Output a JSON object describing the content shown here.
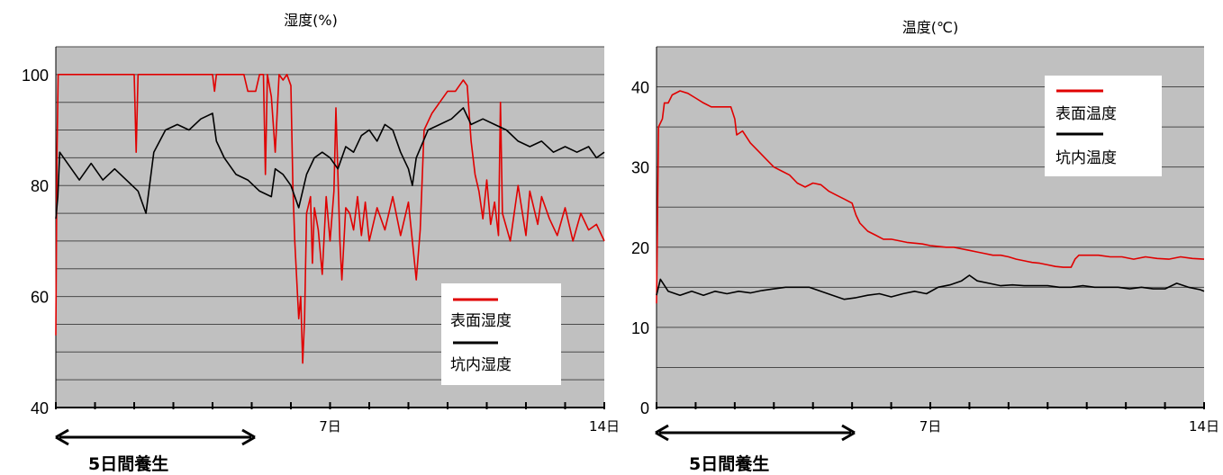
{
  "chart_data": [
    {
      "type": "line",
      "title": "湿度(%)",
      "xlabel": "",
      "ylabel": "",
      "ylim": [
        40,
        105
      ],
      "xlim": [
        0,
        14
      ],
      "yticks": [
        40,
        60,
        80,
        100
      ],
      "xtick_labels": [
        {
          "x": 7,
          "label": "7日"
        },
        {
          "x": 14,
          "label": "14日"
        }
      ],
      "grid": true,
      "legend": "bottom-right",
      "annotation": "5日間養生",
      "annotation_range": [
        0,
        5
      ],
      "series": [
        {
          "name": "表面湿度",
          "color": "#e00000",
          "points": [
            [
              0,
              53
            ],
            [
              0.03,
              86
            ],
            [
              0.06,
              100
            ],
            [
              2.0,
              100
            ],
            [
              2.05,
              86
            ],
            [
              2.1,
              100
            ],
            [
              4.0,
              100
            ],
            [
              4.05,
              97
            ],
            [
              4.1,
              100
            ],
            [
              4.8,
              100
            ],
            [
              4.9,
              97
            ],
            [
              5.1,
              97
            ],
            [
              5.2,
              100
            ],
            [
              5.3,
              100
            ],
            [
              5.35,
              82
            ],
            [
              5.4,
              100
            ],
            [
              5.5,
              96
            ],
            [
              5.6,
              86
            ],
            [
              5.7,
              100
            ],
            [
              5.8,
              99
            ],
            [
              5.9,
              100
            ],
            [
              6.0,
              98
            ],
            [
              6.05,
              80
            ],
            [
              6.1,
              70
            ],
            [
              6.2,
              56
            ],
            [
              6.25,
              60
            ],
            [
              6.3,
              48
            ],
            [
              6.35,
              56
            ],
            [
              6.4,
              75
            ],
            [
              6.5,
              78
            ],
            [
              6.55,
              66
            ],
            [
              6.6,
              76
            ],
            [
              6.7,
              72
            ],
            [
              6.8,
              64
            ],
            [
              6.9,
              78
            ],
            [
              7.0,
              70
            ],
            [
              7.1,
              79
            ],
            [
              7.15,
              94
            ],
            [
              7.25,
              70
            ],
            [
              7.3,
              63
            ],
            [
              7.4,
              76
            ],
            [
              7.5,
              75
            ],
            [
              7.6,
              72
            ],
            [
              7.7,
              78
            ],
            [
              7.8,
              71
            ],
            [
              7.9,
              77
            ],
            [
              8.0,
              70
            ],
            [
              8.2,
              76
            ],
            [
              8.4,
              72
            ],
            [
              8.6,
              78
            ],
            [
              8.8,
              71
            ],
            [
              9.0,
              77
            ],
            [
              9.1,
              70
            ],
            [
              9.2,
              63
            ],
            [
              9.3,
              72
            ],
            [
              9.4,
              90
            ],
            [
              9.6,
              93
            ],
            [
              9.8,
              95
            ],
            [
              10.0,
              97
            ],
            [
              10.2,
              97
            ],
            [
              10.4,
              99
            ],
            [
              10.5,
              98
            ],
            [
              10.6,
              88
            ],
            [
              10.7,
              82
            ],
            [
              10.8,
              79
            ],
            [
              10.9,
              74
            ],
            [
              11.0,
              81
            ],
            [
              11.1,
              73
            ],
            [
              11.2,
              77
            ],
            [
              11.3,
              71
            ],
            [
              11.35,
              95
            ],
            [
              11.4,
              75
            ],
            [
              11.6,
              70
            ],
            [
              11.8,
              80
            ],
            [
              12.0,
              71
            ],
            [
              12.1,
              79
            ],
            [
              12.3,
              73
            ],
            [
              12.4,
              78
            ],
            [
              12.6,
              74
            ],
            [
              12.8,
              71
            ],
            [
              13.0,
              76
            ],
            [
              13.2,
              70
            ],
            [
              13.4,
              75
            ],
            [
              13.6,
              72
            ],
            [
              13.8,
              73
            ],
            [
              14.0,
              70
            ]
          ]
        },
        {
          "name": "坑内湿度",
          "color": "#000000",
          "points": [
            [
              0,
              74
            ],
            [
              0.05,
              78
            ],
            [
              0.1,
              86
            ],
            [
              0.3,
              84
            ],
            [
              0.6,
              81
            ],
            [
              0.9,
              84
            ],
            [
              1.2,
              81
            ],
            [
              1.5,
              83
            ],
            [
              1.8,
              81
            ],
            [
              2.1,
              79
            ],
            [
              2.3,
              75
            ],
            [
              2.5,
              86
            ],
            [
              2.8,
              90
            ],
            [
              3.1,
              91
            ],
            [
              3.4,
              90
            ],
            [
              3.7,
              92
            ],
            [
              4.0,
              93
            ],
            [
              4.1,
              88
            ],
            [
              4.3,
              85
            ],
            [
              4.6,
              82
            ],
            [
              4.9,
              81
            ],
            [
              5.2,
              79
            ],
            [
              5.5,
              78
            ],
            [
              5.6,
              83
            ],
            [
              5.8,
              82
            ],
            [
              6.0,
              80
            ],
            [
              6.2,
              76
            ],
            [
              6.4,
              82
            ],
            [
              6.6,
              85
            ],
            [
              6.8,
              86
            ],
            [
              7.0,
              85
            ],
            [
              7.2,
              83
            ],
            [
              7.4,
              87
            ],
            [
              7.6,
              86
            ],
            [
              7.8,
              89
            ],
            [
              8.0,
              90
            ],
            [
              8.2,
              88
            ],
            [
              8.4,
              91
            ],
            [
              8.6,
              90
            ],
            [
              8.8,
              86
            ],
            [
              9.0,
              83
            ],
            [
              9.1,
              80
            ],
            [
              9.2,
              85
            ],
            [
              9.5,
              90
            ],
            [
              9.8,
              91
            ],
            [
              10.1,
              92
            ],
            [
              10.4,
              94
            ],
            [
              10.6,
              91
            ],
            [
              10.9,
              92
            ],
            [
              11.2,
              91
            ],
            [
              11.5,
              90
            ],
            [
              11.8,
              88
            ],
            [
              12.1,
              87
            ],
            [
              12.4,
              88
            ],
            [
              12.7,
              86
            ],
            [
              13.0,
              87
            ],
            [
              13.3,
              86
            ],
            [
              13.6,
              87
            ],
            [
              13.8,
              85
            ],
            [
              14.0,
              86
            ]
          ]
        }
      ]
    },
    {
      "type": "line",
      "title": "温度(℃)",
      "xlabel": "",
      "ylabel": "",
      "ylim": [
        0,
        45
      ],
      "xlim": [
        0,
        14
      ],
      "yticks": [
        0,
        10,
        20,
        30,
        40
      ],
      "xtick_labels": [
        {
          "x": 7,
          "label": "7日"
        },
        {
          "x": 14,
          "label": "14日"
        }
      ],
      "grid": true,
      "legend": "top-right",
      "annotation": "5日間養生",
      "annotation_range": [
        0,
        5
      ],
      "series": [
        {
          "name": "表面温度",
          "color": "#e00000",
          "points": [
            [
              0,
              13
            ],
            [
              0.05,
              35
            ],
            [
              0.15,
              36
            ],
            [
              0.2,
              38
            ],
            [
              0.3,
              38
            ],
            [
              0.4,
              39
            ],
            [
              0.6,
              39.5
            ],
            [
              0.8,
              39.2
            ],
            [
              1.0,
              38.6
            ],
            [
              1.2,
              38
            ],
            [
              1.4,
              37.5
            ],
            [
              1.7,
              37.5
            ],
            [
              1.9,
              37.5
            ],
            [
              2.0,
              36
            ],
            [
              2.05,
              34
            ],
            [
              2.2,
              34.5
            ],
            [
              2.4,
              33
            ],
            [
              2.6,
              32
            ],
            [
              2.8,
              31
            ],
            [
              3.0,
              30
            ],
            [
              3.2,
              29.5
            ],
            [
              3.4,
              29
            ],
            [
              3.6,
              28
            ],
            [
              3.8,
              27.5
            ],
            [
              4.0,
              28
            ],
            [
              4.2,
              27.8
            ],
            [
              4.4,
              27
            ],
            [
              4.6,
              26.5
            ],
            [
              4.8,
              26
            ],
            [
              5.0,
              25.5
            ],
            [
              5.1,
              24
            ],
            [
              5.2,
              23
            ],
            [
              5.4,
              22
            ],
            [
              5.6,
              21.5
            ],
            [
              5.8,
              21
            ],
            [
              6.0,
              21
            ],
            [
              6.2,
              20.8
            ],
            [
              6.4,
              20.6
            ],
            [
              6.6,
              20.5
            ],
            [
              6.8,
              20.4
            ],
            [
              7.0,
              20.2
            ],
            [
              7.2,
              20.1
            ],
            [
              7.4,
              20
            ],
            [
              7.6,
              20
            ],
            [
              7.8,
              19.8
            ],
            [
              8.0,
              19.6
            ],
            [
              8.2,
              19.4
            ],
            [
              8.4,
              19.2
            ],
            [
              8.6,
              19
            ],
            [
              8.8,
              19
            ],
            [
              9.0,
              18.8
            ],
            [
              9.2,
              18.5
            ],
            [
              9.4,
              18.3
            ],
            [
              9.6,
              18.1
            ],
            [
              9.8,
              18
            ],
            [
              10.0,
              17.8
            ],
            [
              10.2,
              17.6
            ],
            [
              10.4,
              17.5
            ],
            [
              10.6,
              17.5
            ],
            [
              10.7,
              18.5
            ],
            [
              10.8,
              19
            ],
            [
              11.0,
              19
            ],
            [
              11.3,
              19
            ],
            [
              11.6,
              18.8
            ],
            [
              11.9,
              18.8
            ],
            [
              12.2,
              18.5
            ],
            [
              12.5,
              18.8
            ],
            [
              12.8,
              18.6
            ],
            [
              13.1,
              18.5
            ],
            [
              13.4,
              18.8
            ],
            [
              13.7,
              18.6
            ],
            [
              14.0,
              18.5
            ]
          ]
        },
        {
          "name": "坑内温度",
          "color": "#000000",
          "points": [
            [
              0,
              14
            ],
            [
              0.1,
              16
            ],
            [
              0.3,
              14.5
            ],
            [
              0.6,
              14
            ],
            [
              0.9,
              14.5
            ],
            [
              1.2,
              14
            ],
            [
              1.5,
              14.5
            ],
            [
              1.8,
              14.2
            ],
            [
              2.1,
              14.5
            ],
            [
              2.4,
              14.3
            ],
            [
              2.7,
              14.6
            ],
            [
              3.0,
              14.8
            ],
            [
              3.3,
              15
            ],
            [
              3.6,
              15
            ],
            [
              3.9,
              15
            ],
            [
              4.2,
              14.5
            ],
            [
              4.5,
              14
            ],
            [
              4.8,
              13.5
            ],
            [
              5.1,
              13.7
            ],
            [
              5.4,
              14
            ],
            [
              5.7,
              14.2
            ],
            [
              6.0,
              13.8
            ],
            [
              6.3,
              14.2
            ],
            [
              6.6,
              14.5
            ],
            [
              6.9,
              14.2
            ],
            [
              7.2,
              15
            ],
            [
              7.5,
              15.3
            ],
            [
              7.8,
              15.8
            ],
            [
              8.0,
              16.5
            ],
            [
              8.2,
              15.8
            ],
            [
              8.5,
              15.5
            ],
            [
              8.8,
              15.2
            ],
            [
              9.1,
              15.3
            ],
            [
              9.4,
              15.2
            ],
            [
              9.7,
              15.2
            ],
            [
              10.0,
              15.2
            ],
            [
              10.3,
              15
            ],
            [
              10.6,
              15
            ],
            [
              10.9,
              15.2
            ],
            [
              11.2,
              15
            ],
            [
              11.5,
              15
            ],
            [
              11.8,
              15
            ],
            [
              12.1,
              14.8
            ],
            [
              12.4,
              15
            ],
            [
              12.7,
              14.8
            ],
            [
              13.0,
              14.8
            ],
            [
              13.3,
              15.5
            ],
            [
              13.6,
              15
            ],
            [
              13.9,
              14.7
            ],
            [
              14.0,
              14.5
            ]
          ]
        }
      ]
    }
  ]
}
